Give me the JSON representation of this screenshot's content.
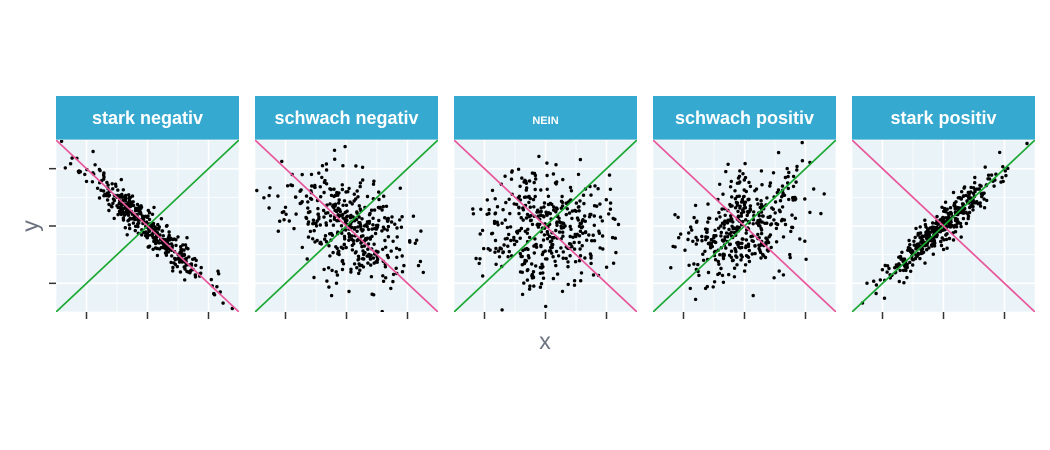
{
  "chart_data": {
    "type": "scatter",
    "title": "",
    "xlabel": "x",
    "ylabel": "y",
    "xlim": [
      -3,
      3
    ],
    "ylim": [
      -3,
      3
    ],
    "x_ticks": [
      -2,
      0,
      2
    ],
    "y_ticks": [
      -2,
      0,
      2
    ],
    "grid": true,
    "reference_lines": [
      {
        "name": "positive-diagonal",
        "slope": 1,
        "intercept": 0,
        "color": "#1aa832"
      },
      {
        "name": "negative-diagonal",
        "slope": -1,
        "intercept": 0,
        "color": "#e8559b"
      }
    ],
    "panels": [
      {
        "label": "stark negativ",
        "correlation": -0.95,
        "n": 400,
        "seed": 11
      },
      {
        "label": "schwach negativ",
        "correlation": -0.45,
        "n": 400,
        "seed": 23
      },
      {
        "label": "NEIN",
        "correlation": 0.0,
        "n": 400,
        "seed": 37
      },
      {
        "label": "schwach positiv",
        "correlation": 0.45,
        "n": 400,
        "seed": 41
      },
      {
        "label": "stark positiv",
        "correlation": 0.95,
        "n": 400,
        "seed": 53
      }
    ]
  },
  "colors": {
    "strip_fill": "#35a9cf",
    "strip_text": "#ffffff",
    "panel_bg": "#eaf3f7",
    "grid": "#ffffff",
    "point": "#000000",
    "axis_text": "#6b7280",
    "tick": "#333333"
  }
}
